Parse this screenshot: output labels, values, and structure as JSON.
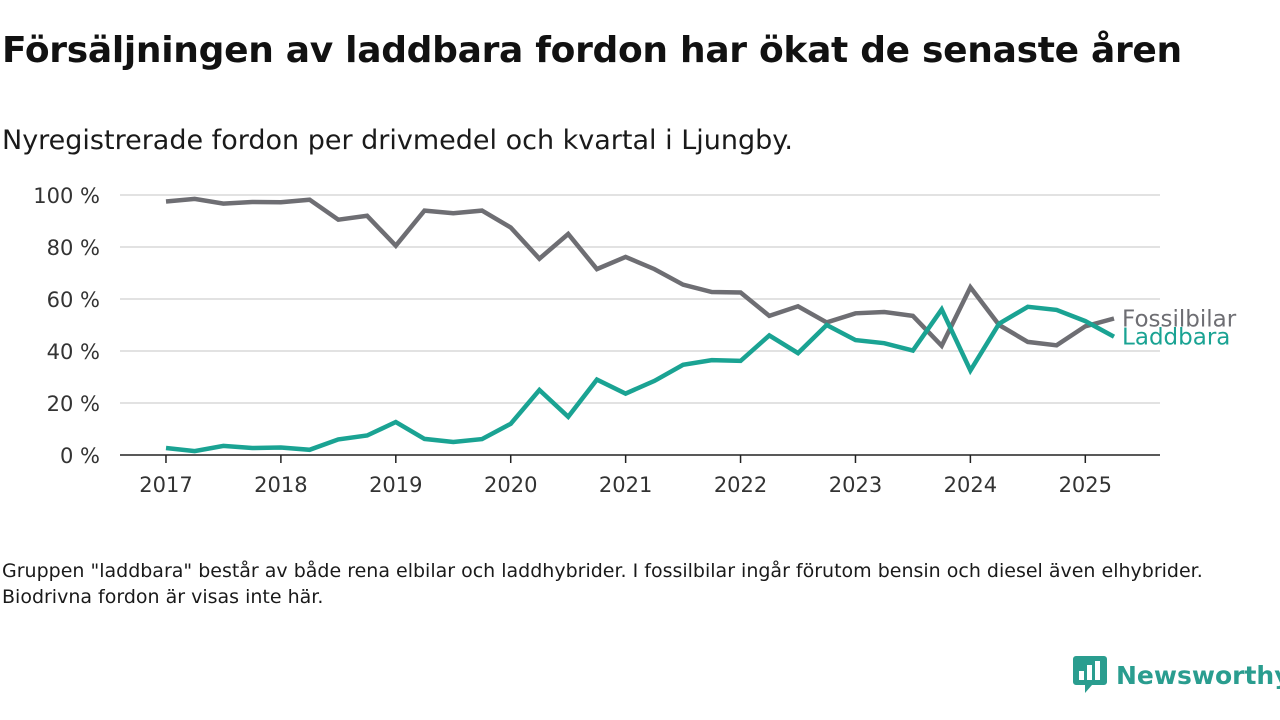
{
  "title": "Försäljningen av laddbara fordon har ökat de senaste åren",
  "subtitle": "Nyregistrerade fordon per drivmedel och kvartal i Ljungby.",
  "note": "Gruppen \"laddbara\" består av både rena elbilar och laddhybrider. I fossilbilar ingår förutom bensin och diesel även elhybrider. Biodrivna fordon är visas inte här.",
  "brand": {
    "name": "Newsworthy",
    "logo_icon": "newsworthy-logo-icon",
    "color": "#2a9d8f"
  },
  "chart_data": {
    "type": "line",
    "x_ticks": [
      "2017",
      "2018",
      "2019",
      "2020",
      "2021",
      "2022",
      "2023",
      "2024",
      "2025"
    ],
    "x_start": 2017,
    "x_step": 0.25,
    "y_ticks": [
      "0 %",
      "20 %",
      "40 %",
      "60 %",
      "80 %",
      "100 %"
    ],
    "y_tick_values": [
      0,
      20,
      40,
      60,
      80,
      100
    ],
    "xlim": [
      2016.6,
      2025.65
    ],
    "ylim": [
      0,
      100
    ],
    "grid": true,
    "legend": "inline labels at line ends",
    "series": [
      {
        "name": "Fossilbilar",
        "color": "#6e6e73",
        "values": [
          97.5,
          98.5,
          96.7,
          97.3,
          97.2,
          98.2,
          90.5,
          92.0,
          80.5,
          94.0,
          93.0,
          94.0,
          87.5,
          75.5,
          85.0,
          71.5,
          76.2,
          71.5,
          65.5,
          62.7,
          62.5,
          53.5,
          57.2,
          51.0,
          54.5,
          55.0,
          53.5,
          42.0,
          64.5,
          50.0,
          43.5,
          42.2,
          49.5,
          52.5
        ]
      },
      {
        "name": "Laddbara",
        "color": "#1aa393",
        "values": [
          2.7,
          1.5,
          3.5,
          2.7,
          2.9,
          2.0,
          6.0,
          7.5,
          12.7,
          6.2,
          5.0,
          6.1,
          12.0,
          25.0,
          14.7,
          29.0,
          23.6,
          28.5,
          34.7,
          36.5,
          36.2,
          46.0,
          39.2,
          50.0,
          44.2,
          43.0,
          40.2,
          56.0,
          32.5,
          50.5,
          57.0,
          55.8,
          51.5,
          45.5
        ]
      }
    ]
  }
}
